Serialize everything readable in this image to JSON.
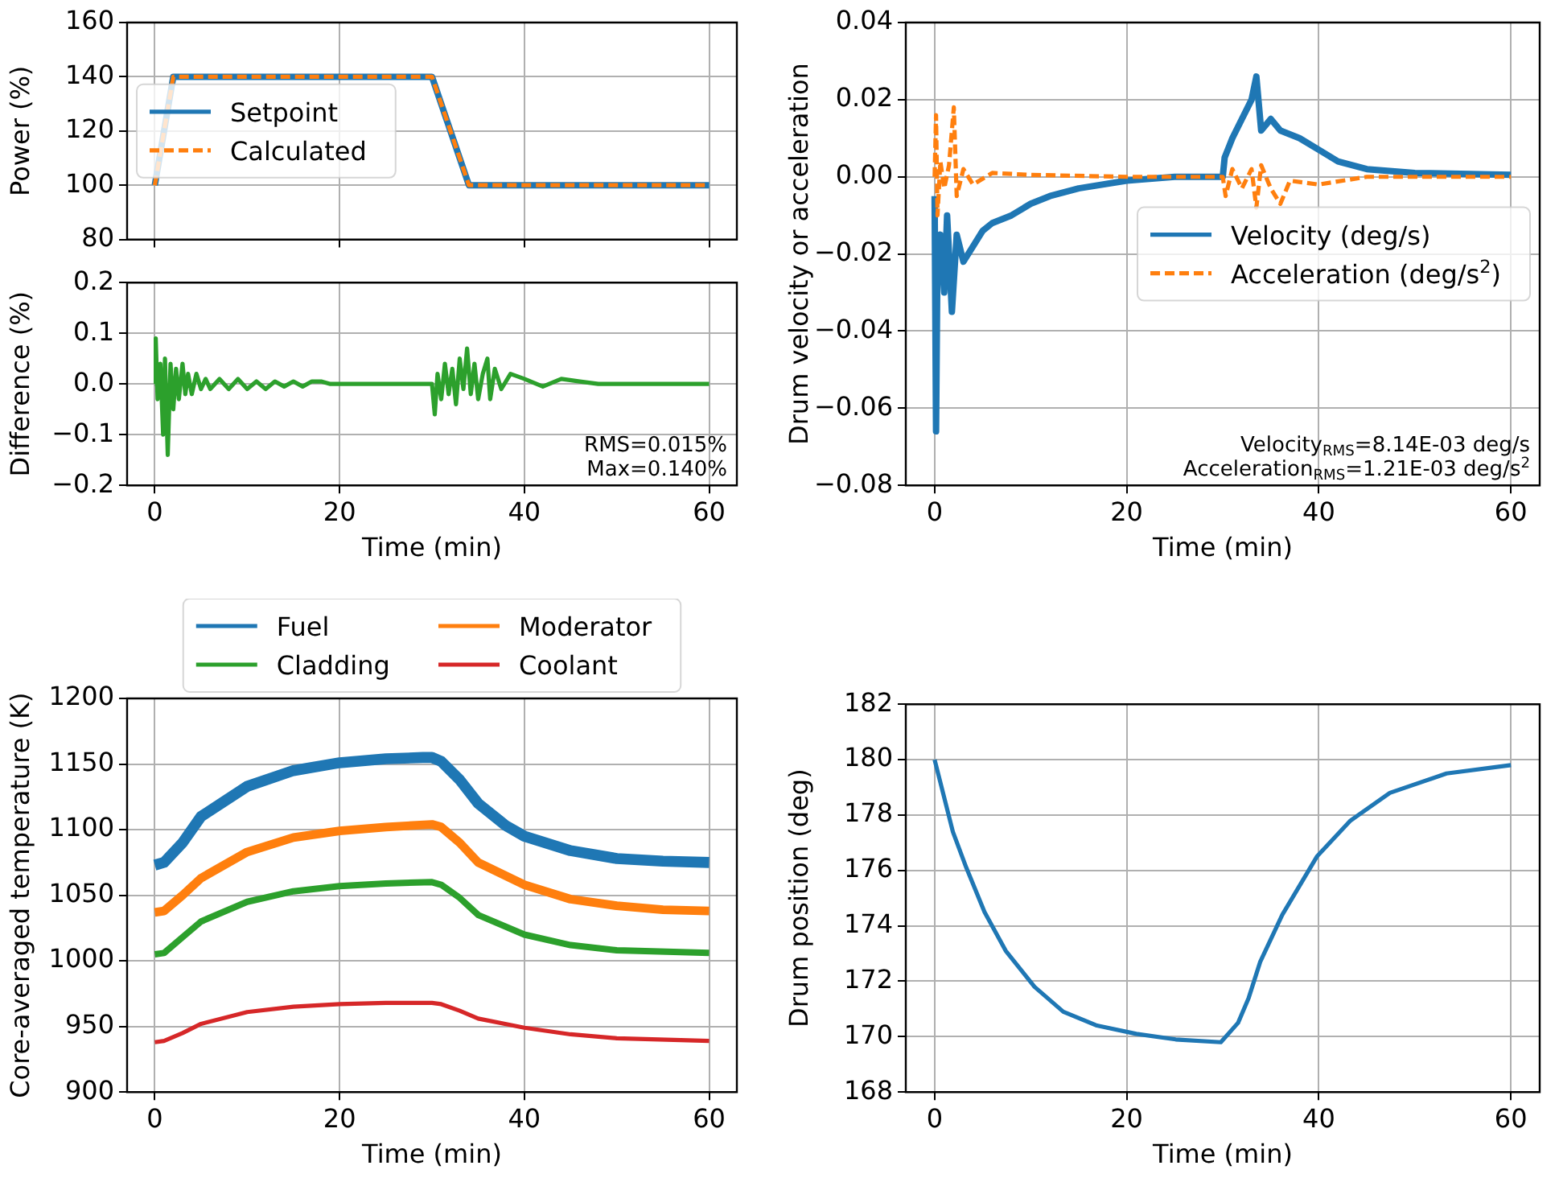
{
  "chart_data": [
    {
      "type": "line",
      "ylabel": "Power (%)",
      "xlim": [
        -3,
        63
      ],
      "xticks": [
        0,
        20,
        40,
        60
      ],
      "ylim": [
        80,
        160
      ],
      "yticks": [
        80,
        100,
        120,
        140,
        160
      ],
      "grid": true,
      "legend": "center left",
      "tick_labels": "y",
      "series": [
        {
          "name": "Setpoint",
          "color": "#1f77b4",
          "line_style": "solid",
          "x": [
            0,
            2,
            30,
            34,
            60
          ],
          "values": [
            100,
            140,
            140,
            100,
            100
          ]
        },
        {
          "name": "Calculated",
          "color": "#ff7f0e",
          "line_style": "dashed",
          "x": [
            0,
            2,
            30,
            34,
            60
          ],
          "values": [
            100,
            140,
            140,
            100,
            100
          ]
        }
      ]
    },
    {
      "type": "line",
      "xlabel": "Time (min)",
      "ylabel": "Difference (%)",
      "xlim": [
        -3,
        63
      ],
      "xticks": [
        0,
        20,
        40,
        60
      ],
      "ylim": [
        -0.2,
        0.2
      ],
      "yticks": [
        {
          "value": -0.2,
          "label": "−0.2"
        },
        {
          "value": -0.1,
          "label": "−0.1"
        },
        {
          "value": 0,
          "label": "0.0"
        },
        {
          "value": 0.1,
          "label": "0.1"
        },
        {
          "value": 0.2,
          "label": "0.2"
        }
      ],
      "grid": true,
      "annotations": [
        "RMS=0.015%",
        "Max=0.140%"
      ],
      "series": [
        {
          "color": "#2ca02c",
          "x": [
            0,
            0.1,
            0.3,
            0.6,
            0.9,
            1.1,
            1.4,
            1.7,
            2.0,
            2.3,
            2.6,
            3.0,
            3.3,
            3.6,
            4.0,
            4.5,
            5,
            5.5,
            6,
            7,
            8,
            9,
            10,
            11,
            12,
            13,
            14,
            15,
            16,
            17,
            18,
            19,
            30,
            30.3,
            30.6,
            31,
            31.4,
            31.8,
            32.2,
            32.6,
            33,
            33.4,
            33.8,
            34.2,
            34.6,
            35,
            35.5,
            36,
            36.3,
            36.8,
            37.5,
            38.5,
            40,
            42,
            44,
            46,
            48,
            50,
            60
          ],
          "values": [
            0,
            0.09,
            -0.03,
            0.04,
            -0.1,
            0.05,
            -0.14,
            0.04,
            -0.05,
            0.03,
            -0.03,
            0.04,
            -0.02,
            0.02,
            -0.02,
            0.02,
            -0.01,
            0.01,
            -0.01,
            0.01,
            -0.01,
            0.01,
            -0.01,
            0.005,
            -0.01,
            0.005,
            -0.005,
            0.005,
            -0.005,
            0.005,
            0.005,
            0,
            0,
            -0.06,
            0.02,
            -0.03,
            0.04,
            -0.02,
            0.03,
            -0.04,
            0.05,
            -0.01,
            0.07,
            -0.02,
            0.04,
            -0.03,
            0.02,
            0.05,
            -0.03,
            0.03,
            -0.01,
            0.02,
            0.01,
            -0.005,
            0.01,
            0.005,
            0,
            0,
            0
          ]
        }
      ]
    },
    {
      "type": "line",
      "xlabel": "Time (min)",
      "ylabel": "Drum velocity or acceleration",
      "xlim": [
        -3,
        63
      ],
      "xticks": [
        0,
        20,
        40,
        60
      ],
      "ylim": [
        -0.08,
        0.04
      ],
      "yticks": [
        {
          "value": -0.08,
          "label": "−0.08"
        },
        {
          "value": -0.06,
          "label": "−0.06"
        },
        {
          "value": -0.04,
          "label": "−0.04"
        },
        {
          "value": -0.02,
          "label": "−0.02"
        },
        {
          "value": 0,
          "label": "0.00"
        },
        {
          "value": 0.02,
          "label": "0.02"
        },
        {
          "value": 0.04,
          "label": "0.04"
        }
      ],
      "grid": true,
      "legend": "center right",
      "annotations": [
        "Velocity$_{RMS}$=8.14E-03 deg/s",
        "Acceleration$_{RMS}$=1.21E-03 deg/s$^{2}$"
      ],
      "series": [
        {
          "name": "Velocity (deg/s)",
          "color": "#1f77b4",
          "line_style": "solid",
          "x": [
            0,
            0.15,
            0.3,
            0.6,
            1,
            1.3,
            1.8,
            2.3,
            3,
            4,
            5,
            6,
            8,
            10,
            12,
            15,
            20,
            25,
            30,
            30.2,
            31,
            32,
            33,
            33.5,
            34,
            35,
            36,
            38,
            40,
            42,
            45,
            50,
            60
          ],
          "values": [
            -0.005,
            -0.066,
            -0.02,
            -0.015,
            -0.03,
            -0.01,
            -0.035,
            -0.015,
            -0.022,
            -0.018,
            -0.014,
            -0.012,
            -0.01,
            -0.007,
            -0.005,
            -0.003,
            -0.001,
            0,
            0,
            0.005,
            0.01,
            0.015,
            0.02,
            0.026,
            0.012,
            0.015,
            0.012,
            0.01,
            0.007,
            0.004,
            0.002,
            0.001,
            0.0005
          ]
        },
        {
          "name": "Acceleration (deg/s$^{2}$)",
          "color": "#ff7f0e",
          "line_style": "dashed",
          "x": [
            0,
            0.15,
            0.3,
            0.6,
            1,
            1.5,
            2,
            2.3,
            3,
            4,
            6,
            10,
            20,
            30,
            30.3,
            31,
            32,
            33,
            33.5,
            34,
            35,
            36,
            37,
            40,
            45,
            60
          ],
          "values": [
            0,
            0.016,
            -0.01,
            0.004,
            -0.003,
            0.003,
            0.018,
            -0.005,
            0.002,
            -0.002,
            0.001,
            0.0005,
            0,
            0,
            -0.005,
            0.002,
            -0.003,
            0.002,
            -0.008,
            0.003,
            -0.003,
            -0.007,
            -0.001,
            -0.002,
            0,
            0
          ]
        }
      ]
    },
    {
      "type": "line",
      "xlabel": "Time (min)",
      "ylabel": "Core-averaged temperature (K)",
      "xlim": [
        -3,
        63
      ],
      "xticks": [
        0,
        20,
        40,
        60
      ],
      "ylim": [
        900,
        1200
      ],
      "yticks": [
        900,
        950,
        1000,
        1050,
        1100,
        1150,
        1200
      ],
      "grid": true,
      "legend": "top",
      "series": [
        {
          "name": "Fuel",
          "color": "#1f77b4",
          "line_style": "solid",
          "x": [
            0,
            1,
            3,
            5,
            10,
            15,
            20,
            25,
            29,
            30,
            31,
            33,
            35,
            38,
            40,
            45,
            50,
            55,
            60
          ],
          "values": [
            1073,
            1075,
            1090,
            1110,
            1133,
            1145,
            1151,
            1154,
            1155,
            1155,
            1152,
            1138,
            1120,
            1103,
            1095,
            1084,
            1078,
            1076,
            1075
          ]
        },
        {
          "name": "Moderator",
          "color": "#ff7f0e",
          "line_style": "solid",
          "x": [
            0,
            1,
            3,
            5,
            10,
            15,
            20,
            25,
            30,
            31,
            33,
            35,
            40,
            45,
            50,
            55,
            60
          ],
          "values": [
            1037,
            1038,
            1050,
            1063,
            1083,
            1094,
            1099,
            1102,
            1104,
            1102,
            1090,
            1075,
            1058,
            1047,
            1042,
            1039,
            1038
          ]
        },
        {
          "name": "Cladding",
          "color": "#2ca02c",
          "line_style": "solid",
          "x": [
            0,
            1,
            3,
            5,
            10,
            15,
            20,
            25,
            30,
            31,
            33,
            35,
            40,
            45,
            50,
            60
          ],
          "values": [
            1005,
            1006,
            1018,
            1030,
            1045,
            1053,
            1057,
            1059,
            1060,
            1058,
            1048,
            1035,
            1020,
            1012,
            1008,
            1006
          ]
        },
        {
          "name": "Coolant",
          "color": "#d62728",
          "line_style": "solid",
          "x": [
            0,
            1,
            3,
            5,
            10,
            15,
            20,
            25,
            30,
            31,
            33,
            35,
            40,
            45,
            50,
            60
          ],
          "values": [
            938,
            939,
            945,
            952,
            961,
            965,
            967,
            968,
            968,
            967,
            962,
            956,
            949,
            944,
            941,
            939
          ]
        }
      ]
    },
    {
      "type": "line",
      "xlabel": "Time (min)",
      "ylabel": "Drum position (deg)",
      "xlim": [
        -3,
        63
      ],
      "xticks": [
        0,
        20,
        40,
        60
      ],
      "ylim": [
        168,
        182
      ],
      "yticks": [
        168,
        170,
        172,
        174,
        176,
        178,
        180,
        182
      ],
      "grid": true,
      "series": [
        {
          "color": "#1f77b4",
          "line_style": "solid",
          "x": [
            0,
            1.9,
            3.3,
            5.2,
            7.4,
            10.4,
            13.4,
            16.9,
            21,
            25.1,
            29.8,
            31.6,
            32.7,
            33.9,
            36.2,
            39.8,
            43.3,
            47.4,
            53.3,
            60
          ],
          "values": [
            180,
            177.4,
            176.1,
            174.5,
            173.1,
            171.8,
            170.9,
            170.4,
            170.1,
            169.9,
            169.8,
            170.5,
            171.4,
            172.7,
            174.4,
            176.5,
            177.8,
            178.8,
            179.5,
            179.8
          ]
        }
      ]
    }
  ]
}
